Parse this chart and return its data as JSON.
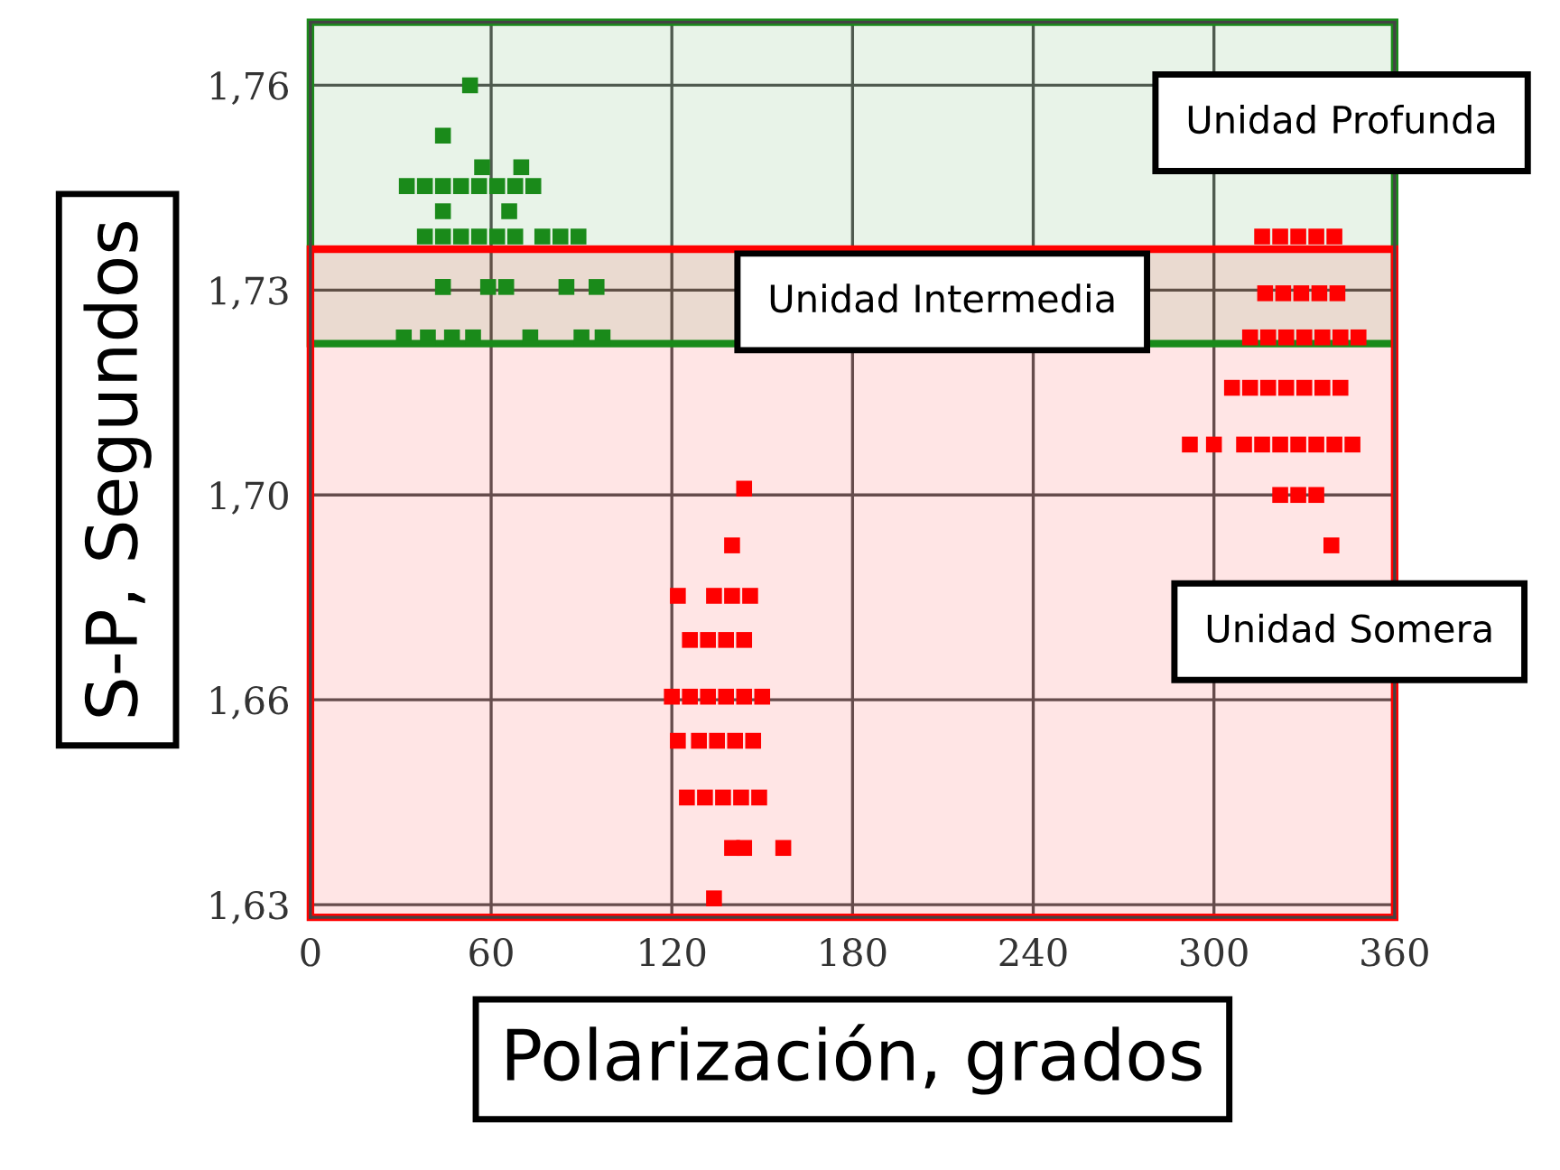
{
  "chart_data": {
    "type": "scatter",
    "xlabel": "Polarización, grados",
    "ylabel": "S-P, Segundos",
    "xlim": [
      0,
      360
    ],
    "xticks": [
      0,
      60,
      120,
      180,
      240,
      300,
      360
    ],
    "ylim": [
      1.628,
      1.77
    ],
    "yticks": [
      {
        "value": 1.63,
        "label": "1,63"
      },
      {
        "value": 1.6625,
        "label": "1,66"
      },
      {
        "value": 1.695,
        "label": "1,70"
      },
      {
        "value": 1.7275,
        "label": "1,73"
      },
      {
        "value": 1.76,
        "label": "1,76"
      }
    ],
    "grid": true,
    "marker": "square",
    "series": [
      {
        "color": "#1a8a1a",
        "x": [
          53,
          44,
          57,
          70,
          32,
          38,
          44,
          50,
          56,
          62,
          68,
          74,
          44,
          66,
          38,
          44,
          50,
          56,
          62,
          68,
          77,
          83,
          89,
          44,
          59,
          65,
          85,
          95,
          31,
          39,
          47,
          54,
          73,
          90,
          97
        ],
        "values": [
          1.76,
          1.752,
          1.747,
          1.747,
          1.744,
          1.744,
          1.744,
          1.744,
          1.744,
          1.744,
          1.744,
          1.744,
          1.74,
          1.74,
          1.736,
          1.736,
          1.736,
          1.736,
          1.736,
          1.736,
          1.736,
          1.736,
          1.736,
          1.728,
          1.728,
          1.728,
          1.728,
          1.728,
          1.72,
          1.72,
          1.72,
          1.72,
          1.72,
          1.72,
          1.72
        ]
      },
      {
        "color": "#ff0000",
        "x": [
          316,
          322,
          328,
          334,
          340,
          317,
          323,
          329,
          335,
          341,
          312,
          318,
          324,
          330,
          336,
          342,
          348,
          306,
          312,
          318,
          324,
          330,
          336,
          342,
          292,
          300,
          310,
          316,
          322,
          328,
          334,
          340,
          346,
          322,
          328,
          334,
          339,
          144,
          140,
          122,
          134,
          140,
          146,
          126,
          132,
          138,
          144,
          120,
          126,
          132,
          138,
          144,
          150,
          122,
          129,
          135,
          141,
          147,
          125,
          131,
          137,
          143,
          149,
          140,
          144,
          157,
          134
        ],
        "values": [
          1.736,
          1.736,
          1.736,
          1.736,
          1.736,
          1.727,
          1.727,
          1.727,
          1.727,
          1.727,
          1.72,
          1.72,
          1.72,
          1.72,
          1.72,
          1.72,
          1.72,
          1.712,
          1.712,
          1.712,
          1.712,
          1.712,
          1.712,
          1.712,
          1.703,
          1.703,
          1.703,
          1.703,
          1.703,
          1.703,
          1.703,
          1.703,
          1.703,
          1.695,
          1.695,
          1.695,
          1.687,
          1.696,
          1.687,
          1.679,
          1.679,
          1.679,
          1.679,
          1.672,
          1.672,
          1.672,
          1.672,
          1.663,
          1.663,
          1.663,
          1.663,
          1.663,
          1.663,
          1.656,
          1.656,
          1.656,
          1.656,
          1.656,
          1.647,
          1.647,
          1.647,
          1.647,
          1.647,
          1.639,
          1.639,
          1.639,
          1.631
        ]
      }
    ],
    "bands": [
      {
        "axis": "y",
        "from": 1.719,
        "to": 1.77,
        "label": "Unidad Profunda",
        "color": "#1a8a1a"
      },
      {
        "axis": "y",
        "from": 1.628,
        "to": 1.734,
        "label": "Unidad Somera",
        "color": "#ff0000"
      }
    ],
    "annotations": [
      "Unidad Intermedia"
    ]
  }
}
